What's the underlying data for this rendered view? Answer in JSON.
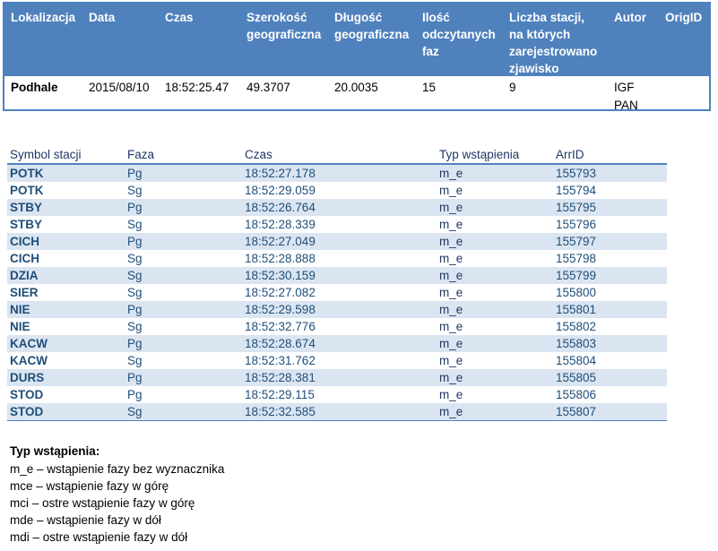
{
  "event_table": {
    "headers": {
      "lokalizacja": "Lokalizacja",
      "data": "Data",
      "czas": "Czas",
      "szerokosc": [
        "Szerokość",
        "geograficzna"
      ],
      "dlugosc": [
        "Długość",
        "geograficzna"
      ],
      "ilosc": [
        "Ilość",
        "odczytanych",
        "faz"
      ],
      "liczba": [
        "Liczba stacji,",
        "na których",
        "zarejestrowano",
        "zjawisko"
      ],
      "autor": "Autor",
      "origid": "OrigID"
    },
    "row": {
      "lokalizacja": "Podhale",
      "data": "2015/08/10",
      "czas": "18:52:25.47",
      "szerokosc": "49.3707",
      "dlugosc": "20.0035",
      "ilosc": "15",
      "liczba": "9",
      "autor": [
        "IGF",
        "PAN"
      ],
      "origid": ""
    }
  },
  "arrivals_table": {
    "headers": {
      "symbol": "Symbol stacji",
      "faza": "Faza",
      "czas": "Czas",
      "typ": "Typ wstąpienia",
      "arrid": "ArrID"
    },
    "rows": [
      {
        "symbol": "POTK",
        "faza": "Pg",
        "czas": "18:52:27.178",
        "typ": "m_e",
        "arrid": "155793"
      },
      {
        "symbol": "POTK",
        "faza": "Sg",
        "czas": "18:52:29.059",
        "typ": "m_e",
        "arrid": "155794"
      },
      {
        "symbol": "STBY",
        "faza": "Pg",
        "czas": "18:52:26.764",
        "typ": "m_e",
        "arrid": "155795"
      },
      {
        "symbol": "STBY",
        "faza": "Sg",
        "czas": "18:52:28.339",
        "typ": "m_e",
        "arrid": "155796"
      },
      {
        "symbol": "CICH",
        "faza": "Pg",
        "czas": "18:52:27.049",
        "typ": "m_e",
        "arrid": "155797"
      },
      {
        "symbol": "CICH",
        "faza": "Sg",
        "czas": "18:52:28.888",
        "typ": "m_e",
        "arrid": "155798"
      },
      {
        "symbol": "DZIA",
        "faza": "Sg",
        "czas": "18:52:30.159",
        "typ": "m_e",
        "arrid": "155799"
      },
      {
        "symbol": "SIER",
        "faza": "Sg",
        "czas": "18:52:27.082",
        "typ": "m_e",
        "arrid": "155800"
      },
      {
        "symbol": "NIE",
        "faza": "Pg",
        "czas": "18:52:29.598",
        "typ": "m_e",
        "arrid": "155801"
      },
      {
        "symbol": "NIE",
        "faza": "Sg",
        "czas": "18:52:32.776",
        "typ": "m_e",
        "arrid": "155802"
      },
      {
        "symbol": "KACW",
        "faza": "Pg",
        "czas": "18:52:28.674",
        "typ": "m_e",
        "arrid": "155803"
      },
      {
        "symbol": "KACW",
        "faza": "Sg",
        "czas": "18:52:31.762",
        "typ": "m_e",
        "arrid": "155804"
      },
      {
        "symbol": "DURS",
        "faza": "Pg",
        "czas": "18:52:28.381",
        "typ": "m_e",
        "arrid": "155805"
      },
      {
        "symbol": "STOD",
        "faza": "Pg",
        "czas": "18:52:29.115",
        "typ": "m_e",
        "arrid": "155806"
      },
      {
        "symbol": "STOD",
        "faza": "Sg",
        "czas": "18:52:32.585",
        "typ": "m_e",
        "arrid": "155807"
      }
    ]
  },
  "legend": {
    "title": "Typ wstąpienia:",
    "items": [
      "m_e – wstąpienie fazy bez wyznacznika",
      "mce – wstąpienie fazy w górę",
      "mci – ostre wstąpienie fazy w górę",
      "mde – wstąpienie fazy w dół",
      "mdi – ostre wstąpienie fazy w dół"
    ]
  },
  "colors": {
    "header_blue": "#4f81bd",
    "row_shade": "#dbe5f1",
    "text_blue": "#1f4e79"
  }
}
